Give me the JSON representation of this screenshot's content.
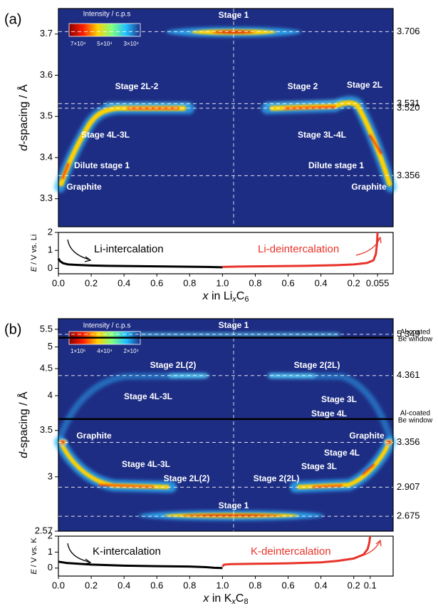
{
  "panels": [
    {
      "label": "(a)",
      "heatmap": {
        "type": "heatmap",
        "y_label": [
          "d",
          "-spacing / Å"
        ],
        "scale": "linear",
        "ylim": [
          3.232,
          3.762
        ],
        "yticks": [
          3.3,
          3.4,
          3.5,
          3.6,
          3.7
        ],
        "reference_lines": [
          3.706,
          3.531,
          {
            "value": 3.52,
            "label": "3.520"
          },
          3.356
        ],
        "colorbar": {
          "title": "Intensity / c.p.s",
          "labels": [
            "7×10⁴",
            "5×10⁴",
            "3×10⁴"
          ]
        },
        "annotations": [
          "Stage 1",
          "Stage 2L-2",
          "Stage 2",
          "Stage 2L",
          "Stage 4L-3L",
          "Stage 3L-4L",
          "Dilute stage 1",
          "Dilute stage 1",
          "Graphite",
          "Graphite"
        ]
      },
      "voltage": {
        "type": "line",
        "y_label": [
          "E",
          " / V vs. Li"
        ],
        "ylim": [
          -0.3,
          2
        ],
        "yticks": [
          0,
          1,
          2
        ],
        "xticks": [
          {
            "value": 0,
            "label": "0.0"
          },
          0.2,
          0.4,
          0.6,
          0.8,
          {
            "value": 1,
            "label": "1.0"
          },
          0.8,
          0.6,
          0.4,
          0.2,
          0.055
        ],
        "x_label": [
          "x",
          " in Li",
          "x",
          "C",
          "6"
        ],
        "series": [
          {
            "name": "Li-intercalation",
            "color": "#000000",
            "x": [
              0,
              0.01,
              0.03,
              0.06,
              0.12,
              0.2,
              0.3,
              0.5,
              0.7,
              0.9,
              1.0
            ],
            "values": [
              0.55,
              0.4,
              0.28,
              0.22,
              0.19,
              0.16,
              0.14,
              0.12,
              0.1,
              0.08,
              0.06
            ]
          },
          {
            "name": "Li-deintercalation",
            "color": "#e8332a",
            "x": [
              1.0,
              0.9,
              0.7,
              0.5,
              0.3,
              0.2,
              0.12,
              0.08,
              0.065,
              0.058,
              0.055
            ],
            "values": [
              0.08,
              0.1,
              0.12,
              0.14,
              0.18,
              0.22,
              0.3,
              0.45,
              0.8,
              1.4,
              2
            ]
          }
        ]
      }
    },
    {
      "label": "(b)",
      "heatmap": {
        "type": "heatmap",
        "y_label": [
          "d",
          "-spacing / Å"
        ],
        "scale": "reciprocal",
        "ylim": [
          2.57,
          5.85
        ],
        "yticks": [
          2.57,
          3,
          3.5,
          4,
          4.5,
          5,
          5.5
        ],
        "reference_lines": [
          5.349,
          4.361,
          3.356,
          2.907,
          2.675
        ],
        "windows": [
          {
            "value": 5.25,
            "text": [
              "Al-coated",
              "Be window"
            ]
          },
          {
            "value": 3.65,
            "text": [
              "Al-coated",
              "Be window"
            ]
          }
        ],
        "colorbar": {
          "title": "Intensity / c.p.s",
          "labels": [
            "1×10⁵",
            "4×10⁴",
            "2×10⁴"
          ]
        },
        "annotations": [
          "Stage 1",
          "Stage 2L(2)",
          "Stage 2(2L)",
          "Stage 4L-3L",
          "Stage 3L",
          "Stage 4L",
          "Graphite",
          "Graphite",
          "Stage 4L-3L",
          "Stage 2L(2)",
          "Stage 2(2L)",
          "Stage 3L",
          "Stage 4L",
          "Stage 1"
        ]
      },
      "voltage": {
        "type": "line",
        "y_label": [
          "E",
          " / V vs. K"
        ],
        "ylim": [
          -0.5,
          2
        ],
        "yticks": [
          0,
          1,
          2
        ],
        "xticks": [
          {
            "value": 0,
            "label": "0.0"
          },
          0.2,
          0.4,
          0.6,
          0.8,
          {
            "value": 1,
            "label": "1.0"
          },
          0.8,
          0.6,
          0.4,
          0.2,
          0.1
        ],
        "x_label": [
          "x",
          " in K",
          "x",
          "C",
          "8"
        ],
        "series": [
          {
            "name": "K-intercalation",
            "color": "#000000",
            "x": [
              0,
              0.05,
              0.2,
              0.4,
              0.6,
              0.8,
              0.9,
              0.95,
              1.0
            ],
            "values": [
              0.4,
              0.32,
              0.22,
              0.15,
              0.12,
              0.1,
              0.06,
              0.02,
              0
            ]
          },
          {
            "name": "K-deintercalation",
            "color": "#e8332a",
            "x": [
              1.0,
              0.99,
              0.95,
              0.8,
              0.6,
              0.4,
              0.3,
              0.2,
              0.14,
              0.115,
              0.105,
              0.1
            ],
            "values": [
              0.1,
              0.22,
              0.25,
              0.27,
              0.3,
              0.36,
              0.45,
              0.6,
              0.85,
              1.2,
              1.6,
              2
            ]
          }
        ]
      }
    }
  ]
}
